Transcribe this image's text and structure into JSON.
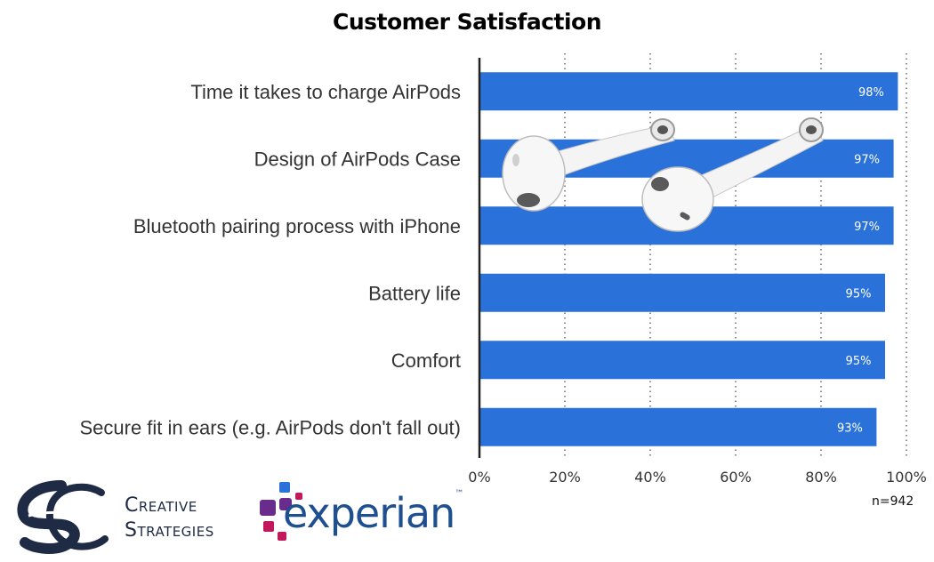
{
  "chart_data": {
    "type": "bar",
    "orientation": "horizontal",
    "title": "Customer Satisfaction",
    "categories": [
      "Time it takes to charge AirPods",
      "Design of AirPods Case",
      "Bluetooth pairing process with iPhone",
      "Battery life",
      "Comfort",
      "Secure fit in ears (e.g. AirPods don't fall out)"
    ],
    "values": [
      98,
      97,
      97,
      95,
      95,
      93
    ],
    "data_labels": [
      "98%",
      "97%",
      "97%",
      "95%",
      "95%",
      "93%"
    ],
    "xlim": [
      0,
      100
    ],
    "xticks": [
      0,
      20,
      40,
      60,
      80,
      100
    ],
    "xtick_labels": [
      "0%",
      "20%",
      "40%",
      "60%",
      "80%",
      "100%"
    ],
    "grid": "vertical dotted",
    "legend": "none",
    "bar_color": "#2a72d9",
    "annotation": "n=942"
  },
  "logos": {
    "creative_strategies": {
      "line1": "Creative",
      "line2": "Strategies",
      "color": "#1f2a44"
    },
    "experian": {
      "text": "experian",
      "tm": "™",
      "color": "#1d4f91",
      "accents": [
        "#6a2c8c",
        "#c2185b",
        "#2a72d9"
      ]
    }
  },
  "images": {
    "product": "airpods-image"
  }
}
